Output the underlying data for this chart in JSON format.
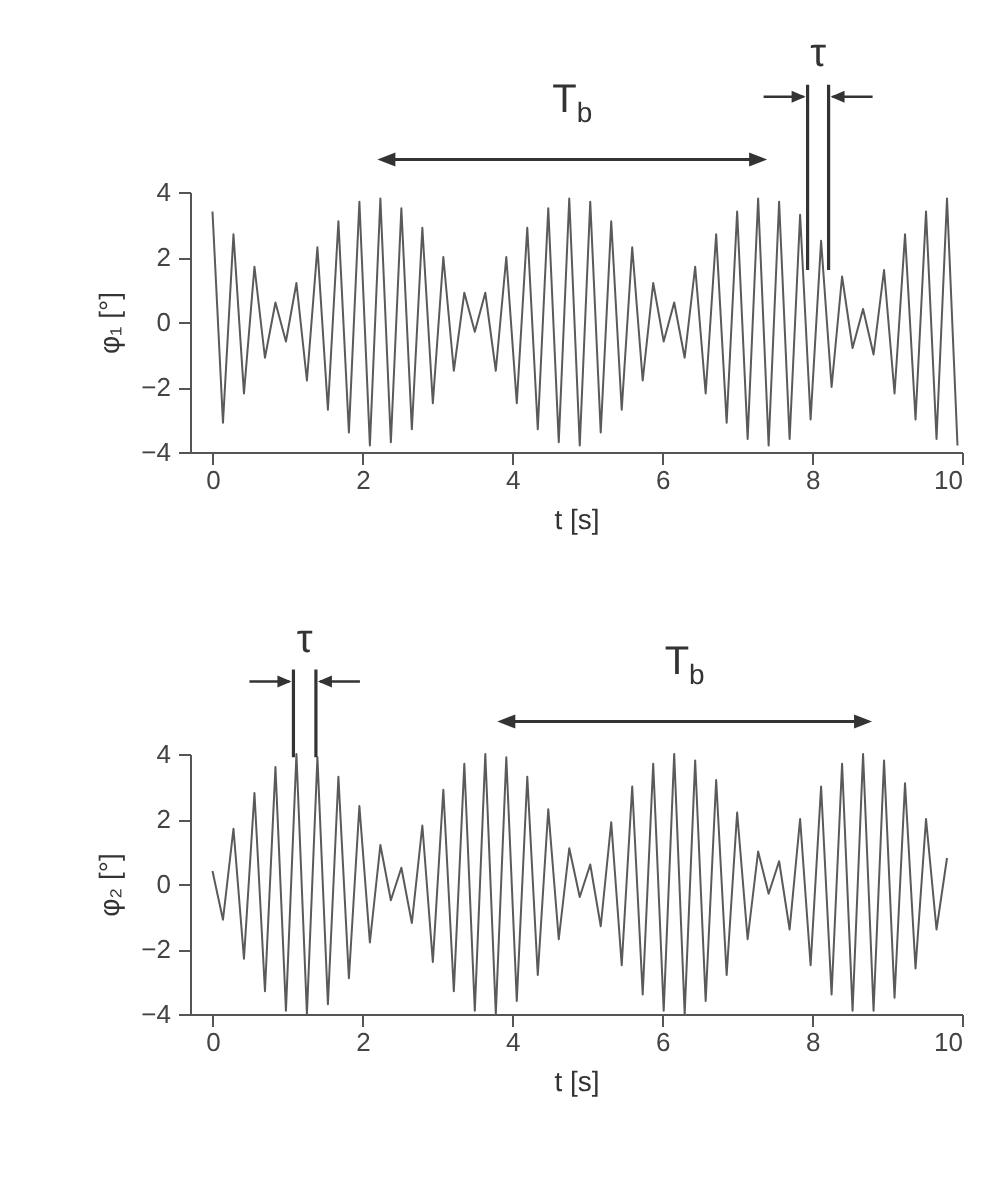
{
  "chart_data": [
    {
      "type": "line",
      "xlabel": "t [s]",
      "ylabel": "φ₁ [°]",
      "annotations": [
        "T$_{b}$",
        {
          "text": "τ",
          "x": 8.08,
          "y": 1.6
        }
      ],
      "x": [
        0,
        0.14,
        0.28,
        0.42,
        0.56,
        0.7,
        0.84,
        0.98,
        1.12,
        1.26,
        1.4,
        1.54,
        1.68,
        1.82,
        1.96,
        2.1,
        2.24,
        2.38,
        2.52,
        2.66,
        2.8,
        2.94,
        3.08,
        3.22,
        3.36,
        3.5,
        3.64,
        3.78,
        3.92,
        4.06,
        4.2,
        4.34,
        4.48,
        4.62,
        4.76,
        4.9,
        5.04,
        5.18,
        5.32,
        5.46,
        5.6,
        5.74,
        5.88,
        6.02,
        6.16,
        6.3,
        6.44,
        6.58,
        6.72,
        6.86,
        7,
        7.14,
        7.28,
        7.42,
        7.56,
        7.7,
        7.84,
        7.98,
        8.12,
        8.26,
        8.4,
        8.54,
        8.68,
        8.82,
        8.96,
        9.1,
        9.24,
        9.38,
        9.52,
        9.66,
        9.8,
        9.94
      ],
      "series": [
        {
          "color": "#5a5a5a",
          "values": [
            3.4,
            -3.1,
            2.7,
            -2.2,
            1.7,
            -1.1,
            0.6,
            -0.6,
            1.2,
            -1.8,
            2.3,
            -2.7,
            3.1,
            -3.4,
            3.7,
            -3.8,
            3.8,
            -3.7,
            3.5,
            -3.3,
            2.9,
            -2.5,
            2.0,
            -1.5,
            0.9,
            -0.3,
            0.9,
            -1.5,
            2.0,
            -2.5,
            2.9,
            -3.3,
            3.5,
            -3.7,
            3.8,
            -3.8,
            3.7,
            -3.4,
            3.1,
            -2.7,
            2.3,
            -1.8,
            1.2,
            -0.6,
            0.6,
            -1.1,
            1.7,
            -2.2,
            2.7,
            -3.1,
            3.4,
            -3.6,
            3.8,
            -3.8,
            3.7,
            -3.6,
            3.3,
            -3.0,
            2.5,
            -2.0,
            1.4,
            -0.8,
            0.4,
            -1.0,
            1.6,
            -2.2,
            2.7,
            -3.0,
            3.4,
            -3.6,
            3.8,
            -3.8
          ]
        }
      ],
      "xlim": [
        -0.3,
        10
      ],
      "xticks": [
        0,
        2,
        4,
        6,
        8,
        10
      ],
      "ylim": [
        -4,
        4
      ],
      "yticks": [
        -4,
        -2,
        0,
        2,
        4
      ],
      "marker": "none",
      "line_style": "solid",
      "grid": false
    },
    {
      "type": "line",
      "xlabel": "t [s]",
      "ylabel": "φ₂ [°]",
      "annotations": [
        {
          "text": "τ",
          "x": 1.23,
          "y": 3.9
        },
        "T$_{b}$"
      ],
      "x": [
        0,
        0.14,
        0.28,
        0.42,
        0.56,
        0.7,
        0.84,
        0.98,
        1.12,
        1.26,
        1.4,
        1.54,
        1.68,
        1.82,
        1.96,
        2.1,
        2.24,
        2.38,
        2.52,
        2.66,
        2.8,
        2.94,
        3.08,
        3.22,
        3.36,
        3.5,
        3.64,
        3.78,
        3.92,
        4.06,
        4.2,
        4.34,
        4.48,
        4.62,
        4.76,
        4.9,
        5.04,
        5.18,
        5.32,
        5.46,
        5.6,
        5.74,
        5.88,
        6.02,
        6.16,
        6.3,
        6.44,
        6.58,
        6.72,
        6.86,
        7,
        7.14,
        7.28,
        7.42,
        7.56,
        7.7,
        7.84,
        7.98,
        8.12,
        8.26,
        8.4,
        8.54,
        8.68,
        8.82,
        8.96,
        9.1,
        9.24,
        9.38,
        9.52,
        9.66,
        9.8
      ],
      "series": [
        {
          "color": "#5a5a5a",
          "values": [
            0.4,
            -1.1,
            1.7,
            -2.3,
            2.8,
            -3.3,
            3.6,
            -3.9,
            4.0,
            -4.0,
            3.9,
            -3.7,
            3.3,
            -2.9,
            2.4,
            -1.8,
            1.2,
            -0.5,
            0.5,
            -1.2,
            1.8,
            -2.4,
            2.9,
            -3.3,
            3.7,
            -3.9,
            4.0,
            -4.0,
            3.9,
            -3.6,
            3.3,
            -2.8,
            2.3,
            -1.7,
            1.1,
            -0.4,
            0.6,
            -1.3,
            1.9,
            -2.5,
            3.0,
            -3.4,
            3.7,
            -3.9,
            4.0,
            -4.0,
            3.8,
            -3.6,
            3.2,
            -2.8,
            2.2,
            -1.7,
            1.0,
            -0.3,
            0.7,
            -1.4,
            2.0,
            -2.5,
            3.0,
            -3.4,
            3.7,
            -3.9,
            4.0,
            -3.9,
            3.8,
            -3.5,
            3.1,
            -2.6,
            2.0,
            -1.4,
            0.8
          ]
        }
      ],
      "xlim": [
        -0.3,
        10
      ],
      "xticks": [
        0,
        2,
        4,
        6,
        8,
        10
      ],
      "ylim": [
        -4,
        4
      ],
      "yticks": [
        -4,
        -2,
        0,
        2,
        4
      ],
      "marker": "none",
      "line_style": "solid",
      "grid": false
    }
  ]
}
